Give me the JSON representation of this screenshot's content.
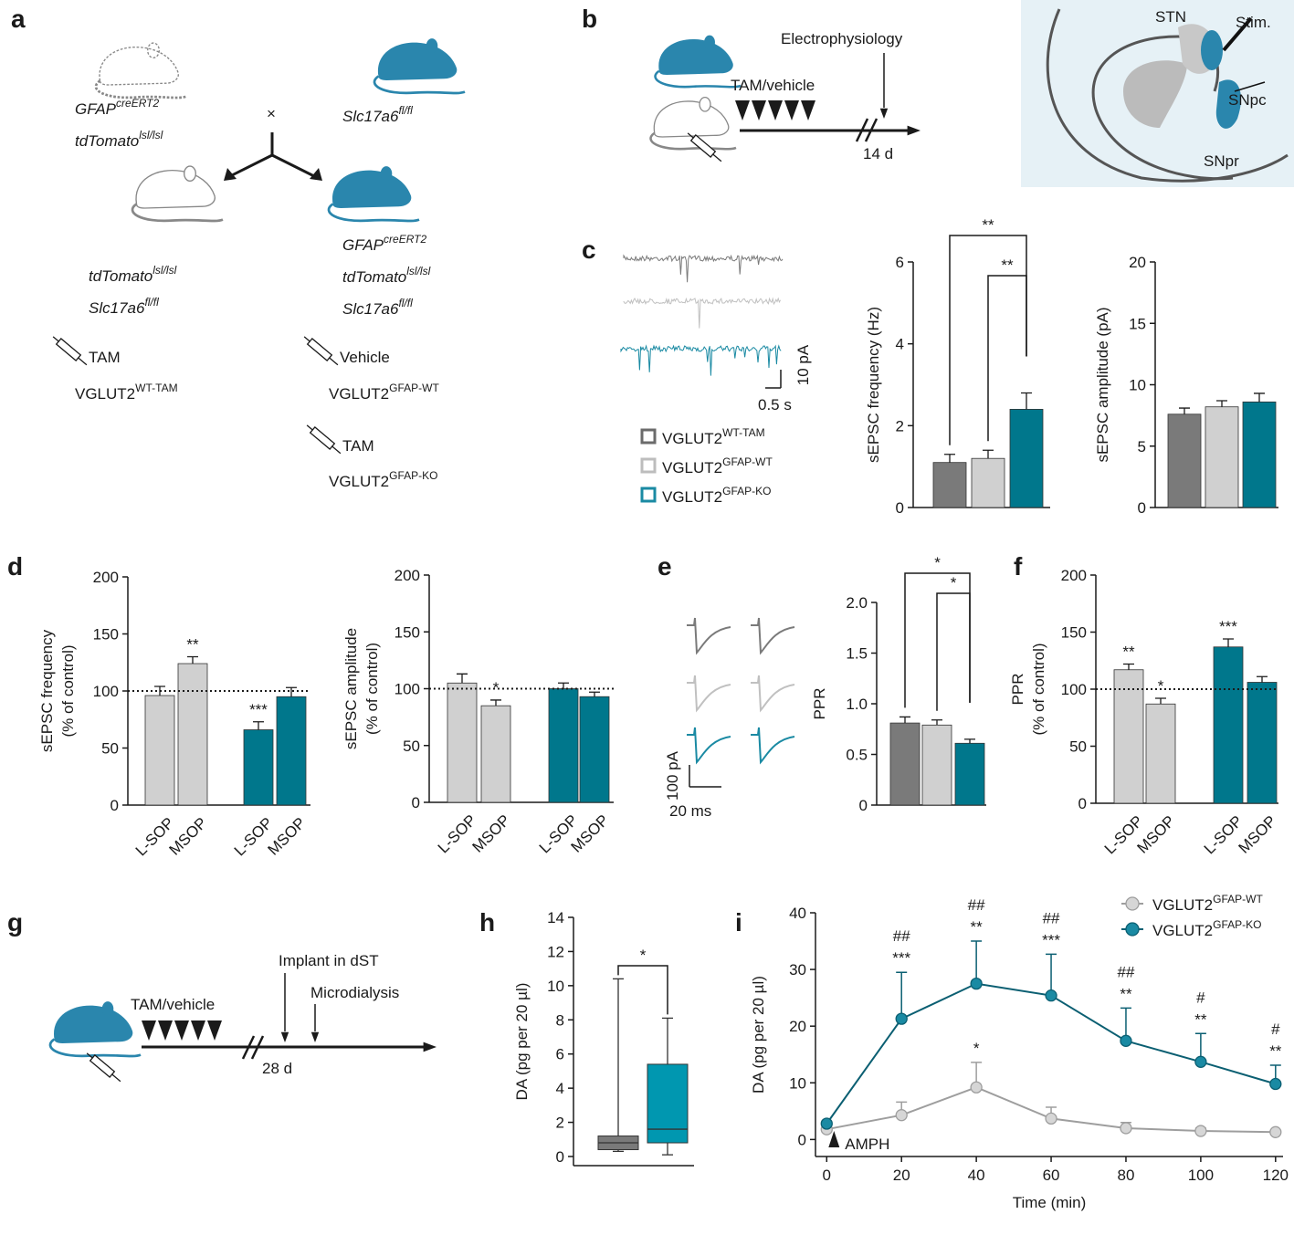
{
  "panel_letters": [
    "a",
    "b",
    "c",
    "d",
    "e",
    "f",
    "g",
    "h",
    "i"
  ],
  "panel_a": {
    "parent1": [
      {
        "base": "GFAP",
        "sup": "creERT2"
      },
      {
        "base": "tdTomato",
        "sup": "lsl/lsl"
      }
    ],
    "cross": "×",
    "parent2": [
      {
        "base": "Slc17a6",
        "sup": "fl/fl"
      }
    ],
    "offspring1": [
      {
        "base": "tdTomato",
        "sup": "lsl/lsl"
      },
      {
        "base": "Slc17a6",
        "sup": "fl/fl"
      }
    ],
    "offspring2": [
      {
        "base": "GFAP",
        "sup": "creERT2"
      },
      {
        "base": "tdTomato",
        "sup": "lsl/lsl"
      },
      {
        "base": "Slc17a6",
        "sup": "fl/fl"
      }
    ],
    "groups": [
      {
        "treatment": "TAM",
        "base": "VGLUT2",
        "sup": "WT-TAM"
      },
      {
        "treatment": "Vehicle",
        "base": "VGLUT2",
        "sup": "GFAP-WT"
      },
      {
        "treatment": "TAM",
        "base": "VGLUT2",
        "sup": "GFAP-KO"
      }
    ]
  },
  "panel_b": {
    "treatment": "TAM/vehicle",
    "recording": "Electrophysiology",
    "duration": "14 d",
    "regions": [
      "STN",
      "Stim.",
      "SNpc",
      "SNpr"
    ]
  },
  "panel_c": {
    "scale_y": "10 pA",
    "scale_x": "0.5 s",
    "legend": [
      {
        "base": "VGLUT2",
        "sup": "WT-TAM",
        "color": "#6b6b6b"
      },
      {
        "base": "VGLUT2",
        "sup": "GFAP-WT",
        "color": "#bdbdbd"
      },
      {
        "base": "VGLUT2",
        "sup": "GFAP-KO",
        "color": "#1a8aa3"
      }
    ]
  },
  "panel_e": {
    "scale_y": "100 pA",
    "scale_x": "20 ms"
  },
  "panel_g": {
    "treatment": "TAM/vehicle",
    "implant": "Implant in dST",
    "sampling": "Microdialysis",
    "duration": "28 d"
  },
  "chart_data": [
    {
      "type": "bar",
      "ylabel": [
        "sEPSC frequency (Hz)"
      ],
      "ylim": [
        0,
        6
      ],
      "yticks": [
        0,
        2,
        4,
        6
      ],
      "values": [
        1.1,
        1.2,
        2.4
      ],
      "errors": [
        0.2,
        0.2,
        0.4
      ],
      "colors": [
        "#7a7a7a",
        "#d0d0d0",
        "#00778c"
      ],
      "significance": [
        {
          "from": 0,
          "to": 2,
          "label": "**"
        },
        {
          "from": 1,
          "to": 2,
          "label": "**"
        }
      ]
    },
    {
      "type": "bar",
      "ylabel": [
        "sEPSC amplitude (pA)"
      ],
      "ylim": [
        0,
        20
      ],
      "yticks": [
        0,
        5,
        10,
        15,
        20
      ],
      "values": [
        7.6,
        8.2,
        8.6
      ],
      "errors": [
        0.5,
        0.5,
        0.7
      ],
      "colors": [
        "#7a7a7a",
        "#d0d0d0",
        "#00778c"
      ]
    },
    {
      "type": "bar",
      "ylabel": [
        "sEPSC frequency",
        "(% of control)"
      ],
      "ylim": [
        0,
        200
      ],
      "yticks": [
        0,
        50,
        100,
        150,
        200
      ],
      "categories": [
        "L-SOP",
        "MSOP",
        "L-SOP",
        "MSOP"
      ],
      "values": [
        96,
        124,
        66,
        95
      ],
      "errors": [
        8,
        6,
        7,
        8
      ],
      "colors": [
        "#d0d0d0",
        "#d0d0d0",
        "#00778c",
        "#00778c"
      ],
      "refline": 100,
      "stars": [
        {
          "index": 1,
          "label": "**"
        },
        {
          "index": 2,
          "label": "***"
        }
      ]
    },
    {
      "type": "bar",
      "ylabel": [
        "sEPSC amplitude",
        "(% of control)"
      ],
      "ylim": [
        0,
        200
      ],
      "yticks": [
        0,
        50,
        100,
        150,
        200
      ],
      "categories": [
        "L-SOP",
        "MSOP",
        "L-SOP",
        "MSOP"
      ],
      "values": [
        105,
        85,
        100,
        93
      ],
      "errors": [
        8,
        5,
        5,
        4
      ],
      "colors": [
        "#d0d0d0",
        "#d0d0d0",
        "#00778c",
        "#00778c"
      ],
      "refline": 100,
      "stars": [
        {
          "index": 1,
          "label": "*"
        }
      ]
    },
    {
      "type": "bar",
      "ylabel": [
        "PPR"
      ],
      "ylim": [
        0,
        2
      ],
      "yticks": [
        0,
        0.5,
        {
          "value": 1,
          "label": "1.0"
        },
        1.5,
        {
          "value": 2,
          "label": "2.0"
        }
      ],
      "values": [
        0.81,
        0.79,
        0.61
      ],
      "errors": [
        0.06,
        0.05,
        0.04
      ],
      "colors": [
        "#7a7a7a",
        "#d0d0d0",
        "#00778c"
      ],
      "significance": [
        {
          "from": 0,
          "to": 2,
          "label": "*"
        },
        {
          "from": 1,
          "to": 2,
          "label": "*"
        }
      ]
    },
    {
      "type": "bar",
      "ylabel": [
        "PPR",
        "(% of control)"
      ],
      "ylim": [
        0,
        200
      ],
      "yticks": [
        0,
        50,
        100,
        150,
        200
      ],
      "categories": [
        "L-SOP",
        "MSOP",
        "L-SOP",
        "MSOP"
      ],
      "values": [
        117,
        87,
        137,
        106
      ],
      "errors": [
        5,
        5,
        7,
        5
      ],
      "colors": [
        "#d0d0d0",
        "#d0d0d0",
        "#00778c",
        "#00778c"
      ],
      "refline": 100,
      "stars": [
        {
          "index": 0,
          "label": "**"
        },
        {
          "index": 1,
          "label": "*"
        },
        {
          "index": 2,
          "label": "***"
        }
      ]
    },
    {
      "type": "box",
      "ylabel": [
        "DA (pg per 20 µl)"
      ],
      "ylim": [
        0,
        14
      ],
      "yticks": [
        0,
        2,
        4,
        6,
        8,
        10,
        12,
        14
      ],
      "boxes": [
        {
          "min": 0.3,
          "q1": 0.4,
          "median": 0.8,
          "q3": 1.2,
          "max": 10.4,
          "color": "#7a7a7a"
        },
        {
          "min": 0.1,
          "q1": 0.8,
          "median": 1.6,
          "q3": 5.4,
          "max": 8.1,
          "color": "#0097b0"
        }
      ],
      "significance": [
        {
          "from": 0,
          "to": 1,
          "label": "*"
        }
      ]
    },
    {
      "type": "line",
      "ylabel": [
        "DA (pg per 20 µl)"
      ],
      "xlabel": "Time (min)",
      "xlim": [
        -3,
        122
      ],
      "xticks": [
        0,
        20,
        40,
        60,
        80,
        100,
        120
      ],
      "ylim": [
        -3,
        40
      ],
      "yticks": [
        0,
        10,
        20,
        30,
        40
      ],
      "x": [
        0,
        20,
        40,
        60,
        80,
        100,
        120
      ],
      "legend": "top-right",
      "event": "AMPH",
      "series": [
        {
          "name": "VGLUT2",
          "name_sup": "GFAP-WT",
          "color": "#9e9e9e",
          "fill": "#d6d6d6",
          "values": [
            1.8,
            4.3,
            9.2,
            3.7,
            2.0,
            1.5,
            1.3
          ],
          "errors": [
            0,
            2.3,
            4.4,
            2.0,
            1.0,
            0.5,
            0.3
          ]
        },
        {
          "name": "VGLUT2",
          "name_sup": "GFAP-KO",
          "color": "#0b5f72",
          "fill": "#1a8aa3",
          "values": [
            2.8,
            21.3,
            27.5,
            25.4,
            17.4,
            13.7,
            9.8
          ],
          "errors": [
            0,
            8.2,
            7.5,
            7.3,
            5.8,
            5.0,
            3.3
          ]
        }
      ],
      "annotations": [
        {
          "series": 1,
          "index": 1,
          "labels": [
            "##",
            "***"
          ]
        },
        {
          "series": 1,
          "index": 2,
          "labels": [
            "##",
            "**"
          ]
        },
        {
          "series": 1,
          "index": 3,
          "labels": [
            "##",
            "***"
          ]
        },
        {
          "series": 1,
          "index": 4,
          "labels": [
            "##",
            "**"
          ]
        },
        {
          "series": 1,
          "index": 5,
          "labels": [
            "#",
            "**"
          ]
        },
        {
          "series": 1,
          "index": 6,
          "labels": [
            "#",
            "**"
          ]
        },
        {
          "series": 0,
          "index": 2,
          "labels": [
            "*"
          ]
        }
      ]
    }
  ]
}
